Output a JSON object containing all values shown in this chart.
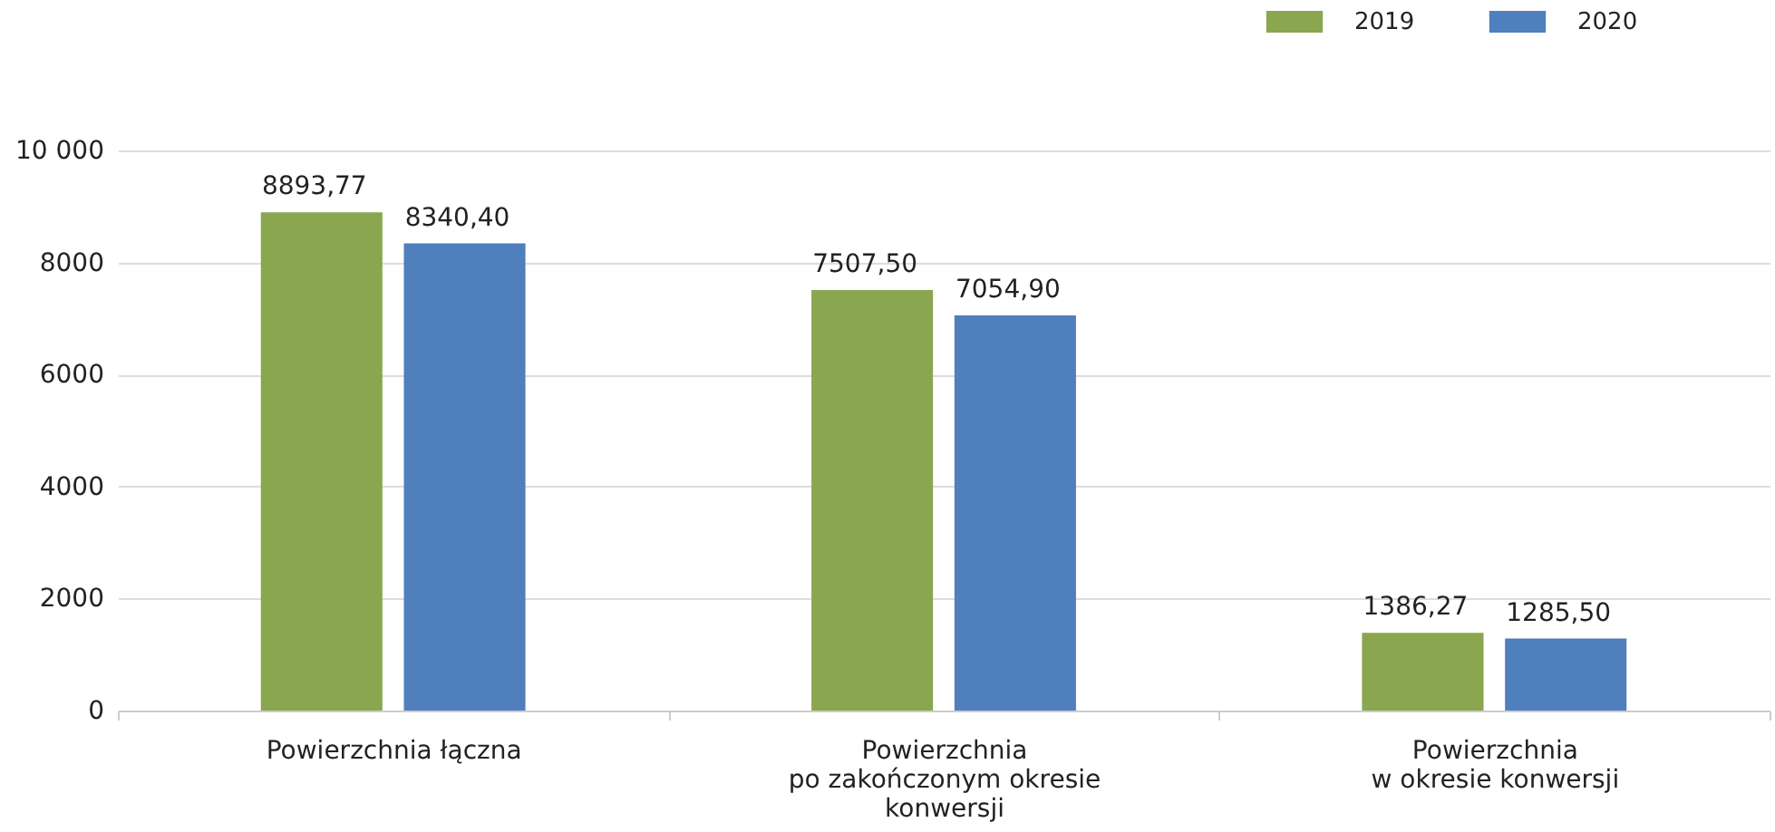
{
  "chart_data": {
    "type": "bar",
    "categories": [
      "Powierzchnia łączna",
      "Powierzchnia\npo zakończonym okresie\nkonwersji",
      "Powierzchnia\nw okresie konwersji"
    ],
    "series": [
      {
        "name": "2019",
        "color": "#8aa64f",
        "values": [
          8893.77,
          7507.5,
          1386.27
        ],
        "value_labels": [
          "8893,77",
          "7507,50",
          "1386,27"
        ]
      },
      {
        "name": "2020",
        "color": "#4f7fbd",
        "values": [
          8340.4,
          7054.9,
          1285.5
        ],
        "value_labels": [
          "8340,40",
          "7054,90",
          "1285,50"
        ]
      }
    ],
    "ylim": [
      0,
      10000
    ],
    "yticks": [
      0,
      2000,
      4000,
      6000,
      8000,
      {
        "value": 10000,
        "label": "10 000"
      }
    ],
    "grid": "y",
    "legend": "top right"
  }
}
